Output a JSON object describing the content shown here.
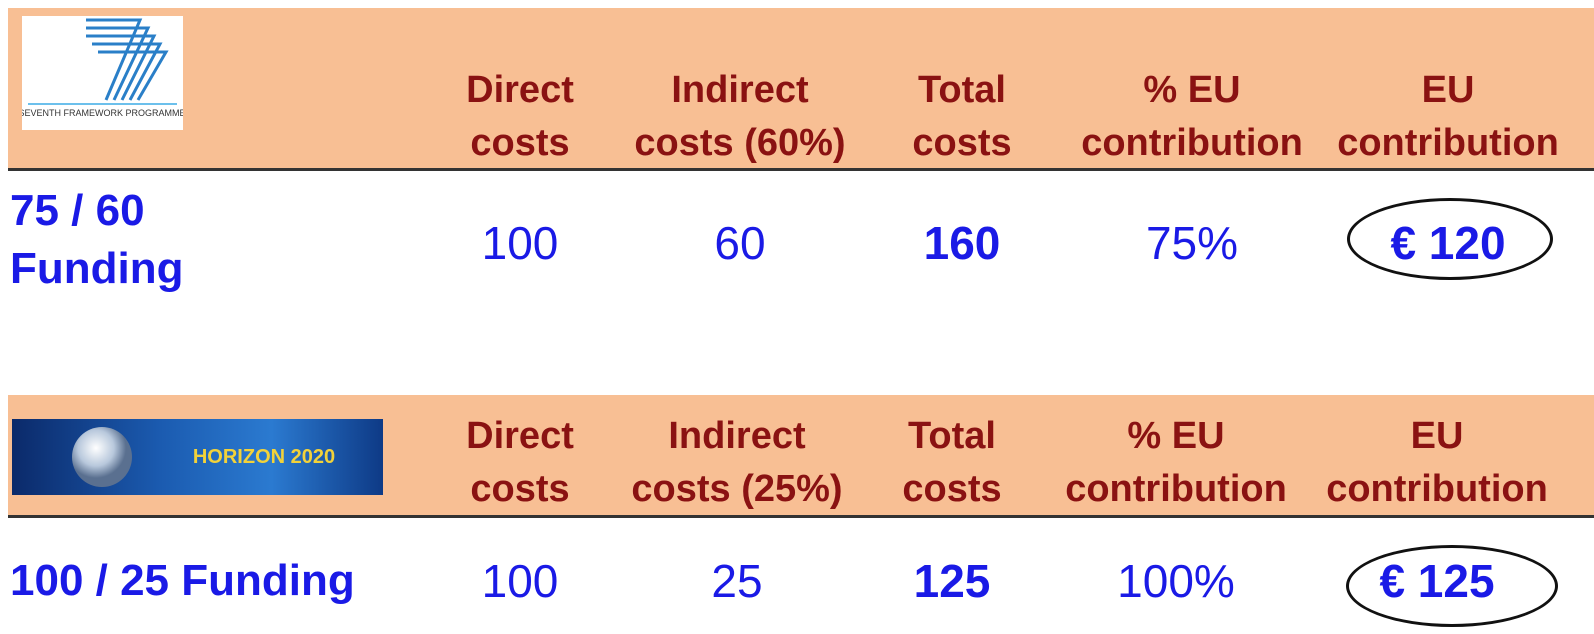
{
  "tables": [
    {
      "logo": "SEVENTH FRAMEWORK PROGRAMME",
      "headers": [
        [
          "Direct",
          "costs"
        ],
        [
          "Indirect",
          "costs (60%)"
        ],
        [
          "Total",
          "costs"
        ],
        [
          "% EU",
          "contribution"
        ],
        [
          "EU",
          "contribution"
        ]
      ],
      "row": {
        "label": "75 / 60 Funding",
        "cells": [
          "100",
          "60",
          "160",
          "75%",
          "€ 120"
        ]
      }
    },
    {
      "logo": "HORIZON 2020",
      "headers": [
        [
          "Direct",
          "costs"
        ],
        [
          "Indirect",
          "costs (25%)"
        ],
        [
          "Total",
          "costs"
        ],
        [
          "% EU",
          "contribution"
        ],
        [
          "EU",
          "contribution"
        ]
      ],
      "row": {
        "label": "100 / 25 Funding",
        "cells": [
          "100",
          "25",
          "125",
          "100%",
          "€ 125"
        ]
      }
    }
  ]
}
